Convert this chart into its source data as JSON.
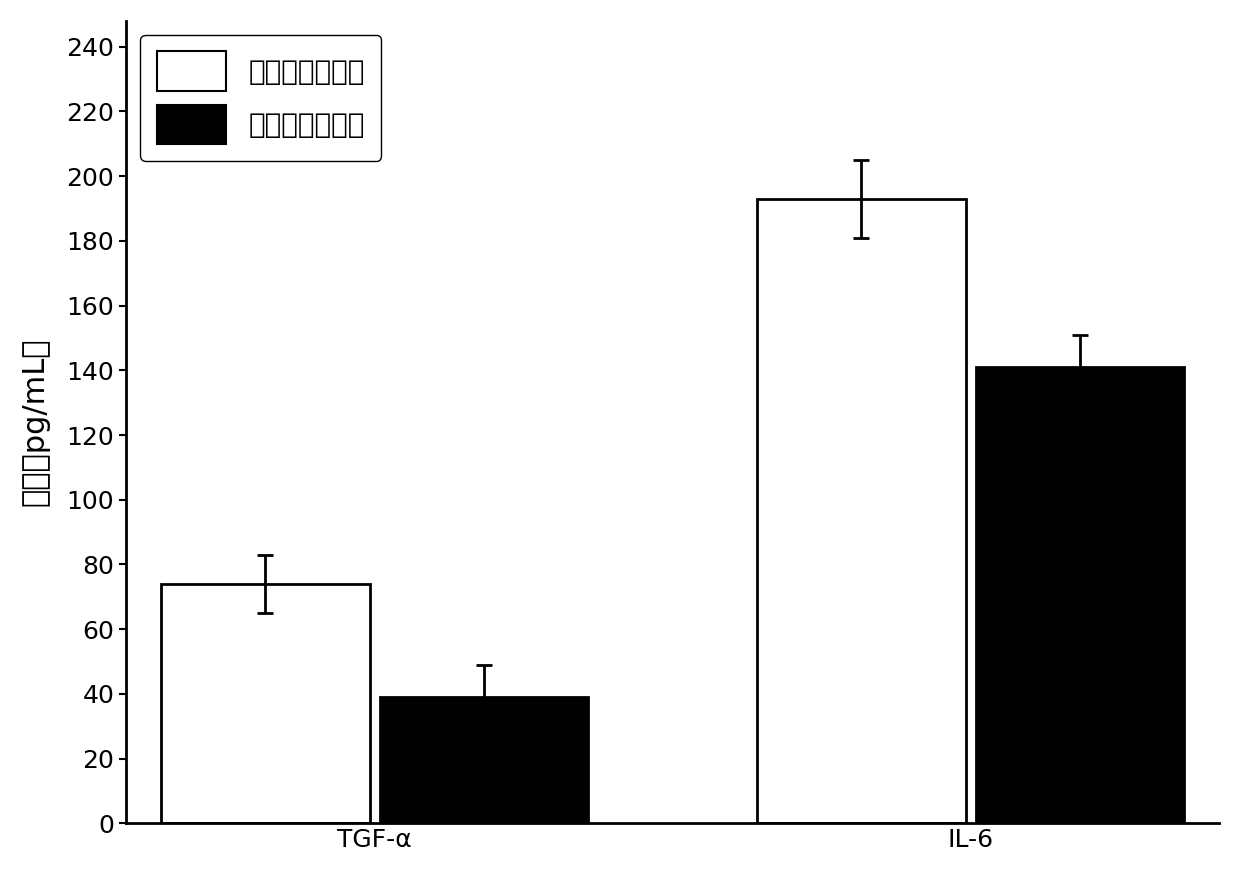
{
  "categories": [
    "TGF-α",
    "IL-6"
  ],
  "bar1_values": [
    74,
    193
  ],
  "bar2_values": [
    39,
    141
  ],
  "bar1_errors": [
    9,
    12
  ],
  "bar2_errors": [
    10,
    10
  ],
  "bar1_color": "#ffffff",
  "bar2_color": "#000000",
  "bar1_edgecolor": "#000000",
  "bar2_edgecolor": "#000000",
  "bar1_label": "抗炎处理前髓核",
  "bar2_label": "抗炎处理后髓核",
  "ylabel": "浓度（pg/mL）",
  "ylim": [
    0,
    248
  ],
  "yticks": [
    0,
    20,
    40,
    60,
    80,
    100,
    120,
    140,
    160,
    180,
    200,
    220,
    240
  ],
  "bar_width": 0.42,
  "x_positions": [
    0.3,
    1.0
  ],
  "group_centers": [
    0.515,
    1.8
  ],
  "background_color": "#ffffff",
  "ecolor": "#000000",
  "capsize": 6,
  "linewidth": 2.0,
  "tick_fontsize": 18,
  "label_fontsize": 22,
  "legend_fontsize": 20
}
